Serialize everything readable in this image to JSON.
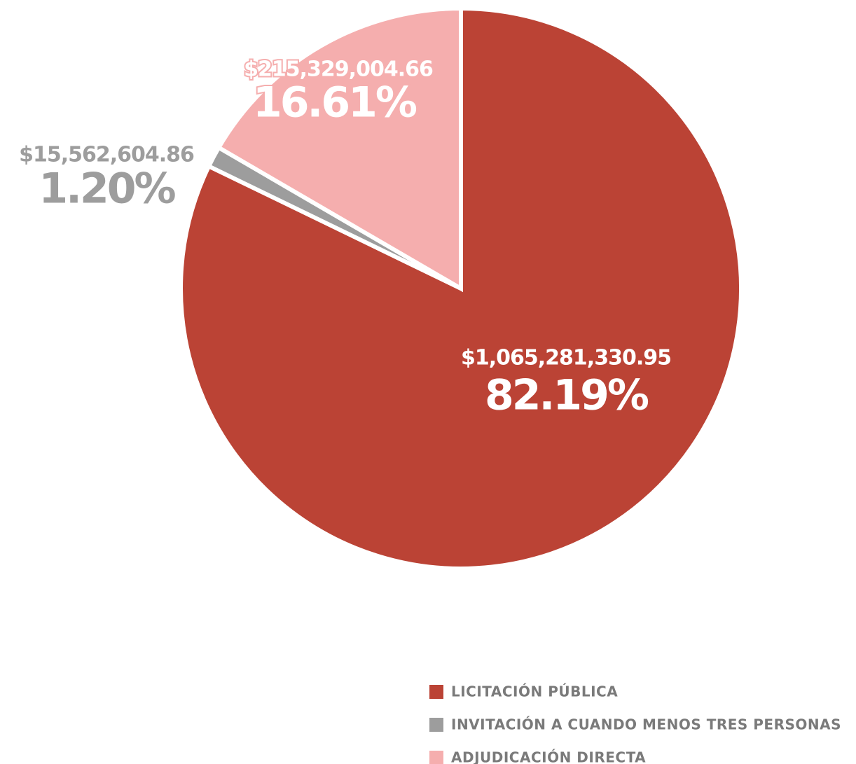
{
  "chart_data": {
    "type": "pie",
    "categories": [
      "LICITACIÓN PÚBLICA",
      "INVITACIÓN A CUANDO MENOS TRES PERSONAS",
      "ADJUDICACIÓN DIRECTA"
    ],
    "values": [
      82.19,
      1.2,
      16.61
    ],
    "value_labels": [
      "82.19%",
      "1.20%",
      "16.61%"
    ],
    "amount_labels": [
      "$1,065,281,330.95",
      "$15,562,604.86",
      "$215,329,004.66"
    ],
    "colors": [
      "#bb4335",
      "#9d9d9d",
      "#f5aeae"
    ]
  }
}
